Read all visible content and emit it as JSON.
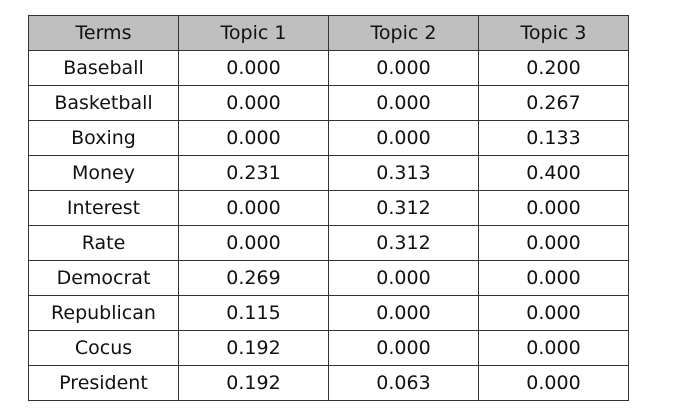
{
  "table": {
    "header": [
      "Terms",
      "Topic 1",
      "Topic 2",
      "Topic 3"
    ],
    "rows": [
      [
        "Baseball",
        "0.000",
        "0.000",
        "0.200"
      ],
      [
        "Basketball",
        "0.000",
        "0.000",
        "0.267"
      ],
      [
        "Boxing",
        "0.000",
        "0.000",
        "0.133"
      ],
      [
        "Money",
        "0.231",
        "0.313",
        "0.400"
      ],
      [
        "Interest",
        "0.000",
        "0.312",
        "0.000"
      ],
      [
        "Rate",
        "0.000",
        "0.312",
        "0.000"
      ],
      [
        "Democrat",
        "0.269",
        "0.000",
        "0.000"
      ],
      [
        "Republican",
        "0.115",
        "0.000",
        "0.000"
      ],
      [
        "Cocus",
        "0.192",
        "0.000",
        "0.000"
      ],
      [
        "President",
        "0.192",
        "0.063",
        "0.000"
      ]
    ]
  }
}
